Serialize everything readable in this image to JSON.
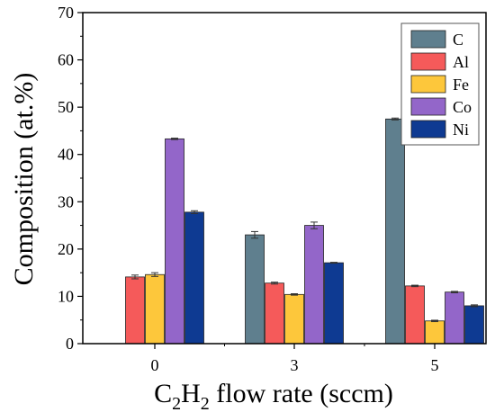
{
  "chart_data": {
    "type": "bar",
    "categories": [
      "0",
      "3",
      "5"
    ],
    "xlabel": {
      "main": "C",
      "sub1": "2",
      "mid": "H",
      "sub2": "2",
      "tail": " flow rate (sccm)"
    },
    "ylabel": "Composition (at.%)",
    "ylim": [
      0,
      70
    ],
    "yticks": [
      "0",
      "10",
      "20",
      "30",
      "40",
      "50",
      "60",
      "70"
    ],
    "legend_position": "top-right",
    "series": [
      {
        "name": "C",
        "color": "#5f7f8e",
        "values": [
          0,
          23.0,
          47.5
        ],
        "errors": [
          0,
          0.7,
          0.2
        ]
      },
      {
        "name": "Al",
        "color": "#f55a5a",
        "values": [
          14.1,
          12.8,
          12.2
        ],
        "errors": [
          0.4,
          0.2,
          0.15
        ]
      },
      {
        "name": "Fe",
        "color": "#fdc73b",
        "values": [
          14.6,
          10.4,
          4.8
        ],
        "errors": [
          0.4,
          0.15,
          0.15
        ]
      },
      {
        "name": "Co",
        "color": "#9366c9",
        "values": [
          43.3,
          25.0,
          10.9
        ],
        "errors": [
          0.15,
          0.7,
          0.15
        ]
      },
      {
        "name": "Ni",
        "color": "#0e3a92",
        "values": [
          27.8,
          17.1,
          8.0
        ],
        "errors": [
          0.3,
          0.1,
          0.2
        ]
      }
    ]
  }
}
